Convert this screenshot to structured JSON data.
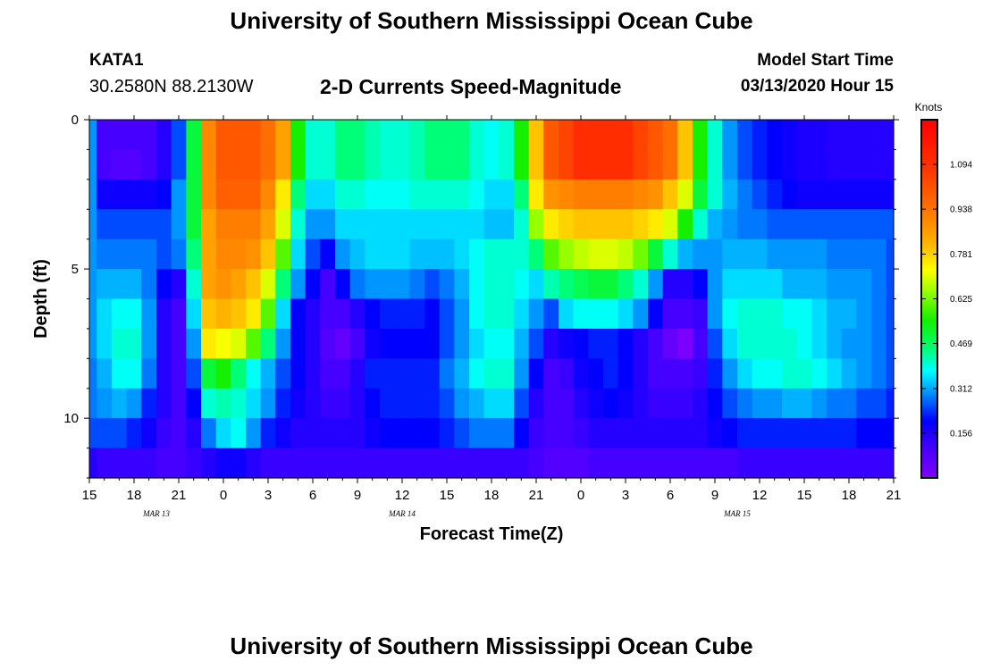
{
  "header": {
    "title": "University of Southern Mississippi Ocean Cube",
    "station_name": "KATA1",
    "station_coords": "30.2580N 88.2130W",
    "plot_title": "2-D Currents Speed-Magnitude",
    "model_start_label": "Model Start Time",
    "model_start_value": "03/13/2020 Hour 15"
  },
  "footer": {
    "title": "University of Southern Mississippi Ocean Cube"
  },
  "chart_data": {
    "type": "heatmap",
    "xlabel": "Forecast Time(Z)",
    "ylabel": "Depth (ft)",
    "x_start_hour": 15,
    "x_end_hour": 69,
    "x_tick_labels": [
      "15",
      "18",
      "21",
      "0",
      "3",
      "6",
      "9",
      "12",
      "15",
      "18",
      "21",
      "0",
      "3",
      "6",
      "9",
      "12",
      "15",
      "18",
      "21"
    ],
    "date_labels": [
      {
        "text": "MAR 13",
        "hour": 19.5
      },
      {
        "text": "MAR 14",
        "hour": 36
      },
      {
        "text": "MAR 15",
        "hour": 58.5
      }
    ],
    "ylim": [
      0,
      12
    ],
    "y_ticks": [
      0,
      5,
      10
    ],
    "colorbar": {
      "title": "Knots",
      "min": 0,
      "max": 1.25,
      "ticks": [
        0.156,
        0.312,
        0.469,
        0.625,
        0.781,
        0.938,
        1.094
      ],
      "tick_labels": [
        "0.156",
        "0.312",
        "0.469",
        "0.625",
        "0.781",
        "0.938",
        "1.094"
      ]
    },
    "layer_depths_ft": [
      0.5,
      1.5,
      2.5,
      3.5,
      4.5,
      5.5,
      6.5,
      7.5,
      8.5,
      9.5,
      10.5,
      11.5
    ],
    "hours": [
      15,
      16,
      17,
      18,
      19,
      20,
      21,
      22,
      23,
      24,
      25,
      26,
      27,
      28,
      29,
      30,
      31,
      32,
      33,
      34,
      35,
      36,
      37,
      38,
      39,
      40,
      41,
      42,
      43,
      44,
      45,
      46,
      47,
      48,
      49,
      50,
      51,
      52,
      53,
      54,
      55,
      56,
      57,
      58,
      59,
      60,
      61,
      62,
      63,
      64,
      65,
      66,
      67,
      68,
      69
    ],
    "speed_knots": [
      [
        0.3,
        0.1,
        0.1,
        0.1,
        0.1,
        0.15,
        0.25,
        0.5,
        0.9,
        1.0,
        1.0,
        1.0,
        0.95,
        0.85,
        0.55,
        0.4,
        0.4,
        0.45,
        0.45,
        0.42,
        0.4,
        0.4,
        0.42,
        0.45,
        0.45,
        0.45,
        0.4,
        0.38,
        0.4,
        0.55,
        0.8,
        1.0,
        1.05,
        1.1,
        1.1,
        1.1,
        1.1,
        1.05,
        1.0,
        0.95,
        0.8,
        0.55,
        0.4,
        0.3,
        0.25,
        0.22,
        0.2,
        0.18,
        0.16,
        0.16,
        0.15,
        0.15,
        0.15,
        0.15,
        0.15
      ],
      [
        0.3,
        0.1,
        0.08,
        0.08,
        0.1,
        0.15,
        0.25,
        0.5,
        0.9,
        1.0,
        1.0,
        1.0,
        0.95,
        0.85,
        0.55,
        0.4,
        0.4,
        0.45,
        0.45,
        0.42,
        0.4,
        0.4,
        0.42,
        0.45,
        0.45,
        0.45,
        0.4,
        0.38,
        0.4,
        0.55,
        0.8,
        1.0,
        1.05,
        1.1,
        1.1,
        1.1,
        1.1,
        1.05,
        1.0,
        0.95,
        0.8,
        0.55,
        0.4,
        0.3,
        0.25,
        0.22,
        0.2,
        0.18,
        0.16,
        0.16,
        0.15,
        0.15,
        0.15,
        0.15,
        0.15
      ],
      [
        0.3,
        0.18,
        0.18,
        0.18,
        0.18,
        0.2,
        0.3,
        0.5,
        0.9,
        0.98,
        0.98,
        0.98,
        0.9,
        0.75,
        0.45,
        0.35,
        0.35,
        0.4,
        0.4,
        0.38,
        0.38,
        0.38,
        0.4,
        0.4,
        0.4,
        0.4,
        0.38,
        0.35,
        0.35,
        0.45,
        0.75,
        0.88,
        0.9,
        0.92,
        0.92,
        0.92,
        0.92,
        0.9,
        0.88,
        0.8,
        0.7,
        0.5,
        0.4,
        0.32,
        0.28,
        0.25,
        0.22,
        0.2,
        0.18,
        0.18,
        0.18,
        0.18,
        0.18,
        0.18,
        0.18
      ],
      [
        0.3,
        0.25,
        0.25,
        0.25,
        0.25,
        0.25,
        0.3,
        0.5,
        0.85,
        0.92,
        0.92,
        0.92,
        0.85,
        0.7,
        0.4,
        0.3,
        0.3,
        0.35,
        0.35,
        0.35,
        0.35,
        0.35,
        0.35,
        0.35,
        0.35,
        0.35,
        0.35,
        0.33,
        0.33,
        0.4,
        0.65,
        0.75,
        0.78,
        0.8,
        0.8,
        0.8,
        0.8,
        0.78,
        0.75,
        0.7,
        0.55,
        0.4,
        0.32,
        0.3,
        0.28,
        0.28,
        0.26,
        0.26,
        0.26,
        0.26,
        0.26,
        0.26,
        0.26,
        0.26,
        0.26
      ],
      [
        0.3,
        0.28,
        0.28,
        0.28,
        0.28,
        0.25,
        0.28,
        0.45,
        0.85,
        0.9,
        0.9,
        0.88,
        0.8,
        0.6,
        0.35,
        0.25,
        0.2,
        0.3,
        0.33,
        0.35,
        0.35,
        0.35,
        0.33,
        0.33,
        0.33,
        0.35,
        0.38,
        0.4,
        0.4,
        0.4,
        0.45,
        0.6,
        0.65,
        0.68,
        0.7,
        0.7,
        0.68,
        0.62,
        0.5,
        0.4,
        0.32,
        0.3,
        0.3,
        0.32,
        0.32,
        0.32,
        0.3,
        0.3,
        0.3,
        0.3,
        0.28,
        0.28,
        0.28,
        0.28,
        0.25
      ],
      [
        0.3,
        0.32,
        0.32,
        0.32,
        0.28,
        0.2,
        0.15,
        0.4,
        0.85,
        0.88,
        0.85,
        0.8,
        0.7,
        0.45,
        0.3,
        0.2,
        0.1,
        0.2,
        0.28,
        0.3,
        0.3,
        0.3,
        0.28,
        0.25,
        0.28,
        0.32,
        0.38,
        0.4,
        0.4,
        0.38,
        0.35,
        0.42,
        0.45,
        0.48,
        0.5,
        0.5,
        0.45,
        0.4,
        0.3,
        0.15,
        0.15,
        0.2,
        0.3,
        0.35,
        0.35,
        0.35,
        0.35,
        0.32,
        0.32,
        0.32,
        0.3,
        0.3,
        0.3,
        0.28,
        0.25
      ],
      [
        0.3,
        0.35,
        0.38,
        0.38,
        0.3,
        0.15,
        0.1,
        0.35,
        0.8,
        0.82,
        0.8,
        0.75,
        0.6,
        0.35,
        0.2,
        0.15,
        0.1,
        0.1,
        0.15,
        0.2,
        0.22,
        0.22,
        0.22,
        0.2,
        0.25,
        0.3,
        0.38,
        0.4,
        0.4,
        0.35,
        0.3,
        0.25,
        0.35,
        0.38,
        0.38,
        0.38,
        0.35,
        0.3,
        0.2,
        0.1,
        0.1,
        0.12,
        0.3,
        0.38,
        0.4,
        0.4,
        0.4,
        0.38,
        0.38,
        0.35,
        0.32,
        0.32,
        0.3,
        0.28,
        0.25
      ],
      [
        0.3,
        0.35,
        0.4,
        0.4,
        0.3,
        0.15,
        0.1,
        0.3,
        0.75,
        0.72,
        0.7,
        0.6,
        0.45,
        0.3,
        0.2,
        0.15,
        0.08,
        0.05,
        0.1,
        0.18,
        0.2,
        0.2,
        0.2,
        0.2,
        0.25,
        0.3,
        0.35,
        0.38,
        0.38,
        0.32,
        0.25,
        0.15,
        0.18,
        0.2,
        0.22,
        0.22,
        0.2,
        0.15,
        0.1,
        0.05,
        0.01,
        0.1,
        0.25,
        0.35,
        0.4,
        0.4,
        0.4,
        0.4,
        0.38,
        0.35,
        0.32,
        0.3,
        0.3,
        0.28,
        0.25
      ],
      [
        0.28,
        0.32,
        0.38,
        0.38,
        0.28,
        0.15,
        0.1,
        0.25,
        0.5,
        0.55,
        0.45,
        0.38,
        0.32,
        0.25,
        0.2,
        0.15,
        0.1,
        0.1,
        0.15,
        0.22,
        0.22,
        0.22,
        0.22,
        0.22,
        0.28,
        0.32,
        0.38,
        0.4,
        0.4,
        0.3,
        0.2,
        0.1,
        0.12,
        0.18,
        0.2,
        0.22,
        0.2,
        0.15,
        0.1,
        0.1,
        0.1,
        0.12,
        0.22,
        0.3,
        0.35,
        0.38,
        0.38,
        0.4,
        0.4,
        0.38,
        0.35,
        0.32,
        0.3,
        0.28,
        0.25
      ],
      [
        0.28,
        0.3,
        0.32,
        0.3,
        0.22,
        0.15,
        0.1,
        0.2,
        0.4,
        0.42,
        0.4,
        0.35,
        0.3,
        0.22,
        0.18,
        0.15,
        0.12,
        0.12,
        0.15,
        0.2,
        0.22,
        0.22,
        0.22,
        0.22,
        0.25,
        0.3,
        0.32,
        0.35,
        0.35,
        0.25,
        0.15,
        0.1,
        0.1,
        0.15,
        0.18,
        0.2,
        0.18,
        0.15,
        0.12,
        0.12,
        0.12,
        0.15,
        0.2,
        0.25,
        0.28,
        0.3,
        0.3,
        0.32,
        0.32,
        0.3,
        0.28,
        0.28,
        0.25,
        0.25,
        0.22
      ],
      [
        0.25,
        0.25,
        0.25,
        0.22,
        0.18,
        0.12,
        0.1,
        0.15,
        0.28,
        0.35,
        0.38,
        0.3,
        0.22,
        0.18,
        0.15,
        0.15,
        0.15,
        0.15,
        0.15,
        0.18,
        0.2,
        0.2,
        0.2,
        0.2,
        0.22,
        0.25,
        0.28,
        0.28,
        0.28,
        0.2,
        0.12,
        0.1,
        0.1,
        0.12,
        0.15,
        0.15,
        0.15,
        0.15,
        0.15,
        0.15,
        0.15,
        0.15,
        0.18,
        0.2,
        0.22,
        0.22,
        0.22,
        0.22,
        0.22,
        0.22,
        0.22,
        0.22,
        0.2,
        0.2,
        0.2
      ],
      [
        0.15,
        0.12,
        0.12,
        0.12,
        0.12,
        0.1,
        0.1,
        0.12,
        0.15,
        0.18,
        0.18,
        0.15,
        0.12,
        0.12,
        0.12,
        0.12,
        0.12,
        0.12,
        0.12,
        0.12,
        0.12,
        0.12,
        0.12,
        0.12,
        0.12,
        0.12,
        0.12,
        0.12,
        0.12,
        0.12,
        0.1,
        0.08,
        0.08,
        0.08,
        0.1,
        0.1,
        0.1,
        0.1,
        0.1,
        0.1,
        0.1,
        0.1,
        0.1,
        0.1,
        0.12,
        0.12,
        0.12,
        0.12,
        0.12,
        0.12,
        0.12,
        0.12,
        0.12,
        0.12,
        0.12
      ]
    ]
  }
}
